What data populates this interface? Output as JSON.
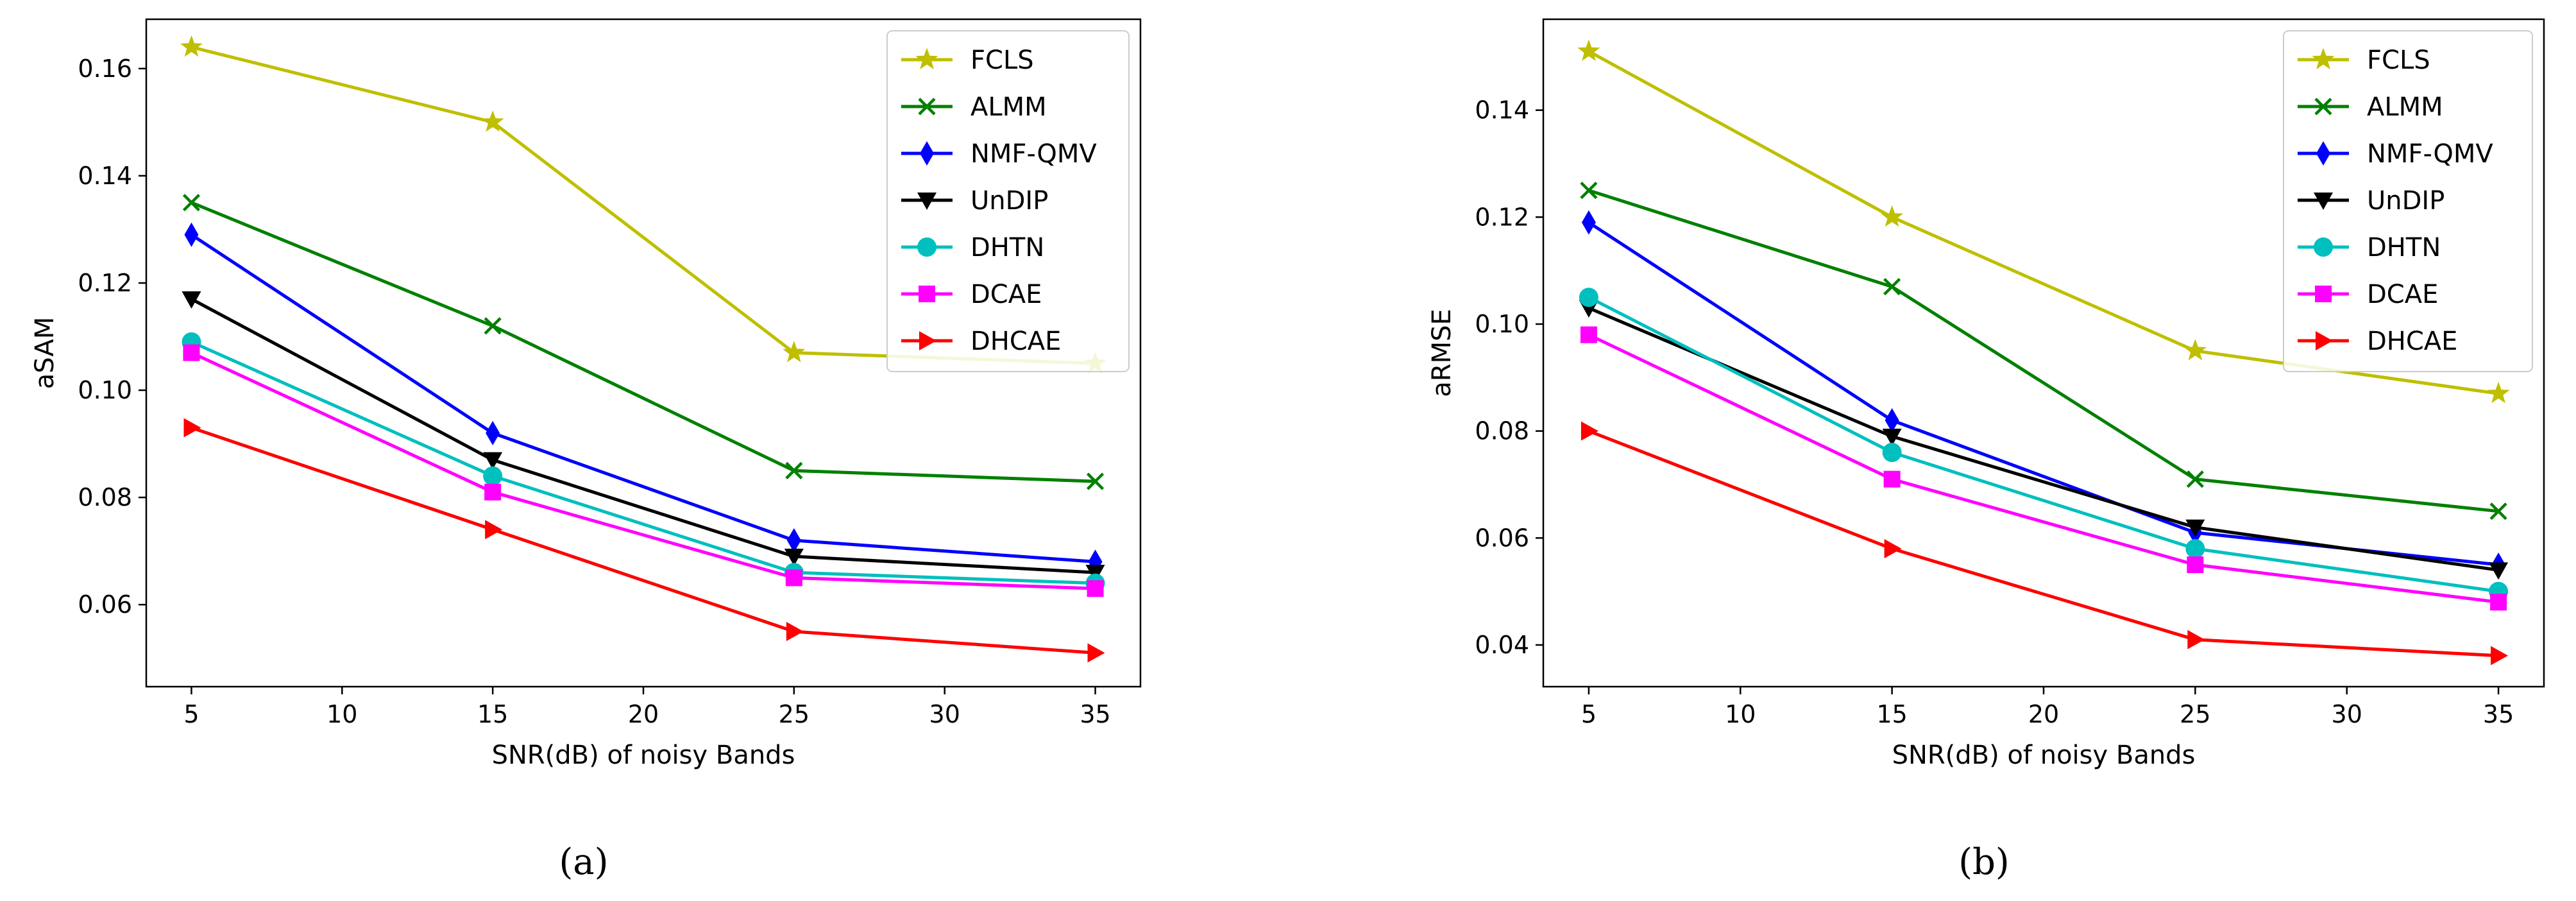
{
  "chart_data": [
    {
      "type": "line",
      "panel_label": "(a)",
      "title": "",
      "xlabel": "SNR(dB) of noisy Bands",
      "ylabel": "aSAM",
      "x": [
        5,
        15,
        25,
        35
      ],
      "xlim": [
        3.5,
        36.5
      ],
      "ylim": [
        0.0447,
        0.1692
      ],
      "xticks": [
        "5",
        "10",
        "15",
        "20",
        "25",
        "30",
        "35"
      ],
      "yticks": [
        "0.06",
        "0.08",
        "0.10",
        "0.12",
        "0.14",
        "0.16"
      ],
      "grid": false,
      "legend_position": "top-right",
      "series": [
        {
          "name": "FCLS",
          "color": "#bfbf00",
          "marker": "star",
          "values": [
            0.164,
            0.15,
            0.107,
            0.105
          ]
        },
        {
          "name": "ALMM",
          "color": "#008000",
          "marker": "x",
          "values": [
            0.135,
            0.112,
            0.085,
            0.083
          ]
        },
        {
          "name": "NMF-QMV",
          "color": "#0000ff",
          "marker": "thin-diamond",
          "values": [
            0.129,
            0.092,
            0.072,
            0.068
          ]
        },
        {
          "name": "UnDIP",
          "color": "#000000",
          "marker": "triangle-down",
          "values": [
            0.117,
            0.087,
            0.069,
            0.066
          ]
        },
        {
          "name": "DHTN",
          "color": "#00bfbf",
          "marker": "circle",
          "values": [
            0.109,
            0.084,
            0.066,
            0.064
          ]
        },
        {
          "name": "DCAE",
          "color": "#ff00ff",
          "marker": "square",
          "values": [
            0.107,
            0.081,
            0.065,
            0.063
          ]
        },
        {
          "name": "DHCAE",
          "color": "#ff0000",
          "marker": "triangle-right",
          "values": [
            0.093,
            0.074,
            0.055,
            0.051
          ]
        }
      ]
    },
    {
      "type": "line",
      "panel_label": "(b)",
      "title": "",
      "xlabel": "SNR(dB) of noisy Bands",
      "ylabel": "aRMSE",
      "x": [
        5,
        15,
        25,
        35
      ],
      "xlim": [
        3.5,
        36.5
      ],
      "ylim": [
        0.0322,
        0.157
      ],
      "xticks": [
        "5",
        "10",
        "15",
        "20",
        "25",
        "30",
        "35"
      ],
      "yticks": [
        "0.04",
        "0.06",
        "0.08",
        "0.10",
        "0.12",
        "0.14"
      ],
      "grid": false,
      "legend_position": "top-right",
      "series": [
        {
          "name": "FCLS",
          "color": "#bfbf00",
          "marker": "star",
          "values": [
            0.151,
            0.12,
            0.095,
            0.087
          ]
        },
        {
          "name": "ALMM",
          "color": "#008000",
          "marker": "x",
          "values": [
            0.125,
            0.107,
            0.071,
            0.065
          ]
        },
        {
          "name": "NMF-QMV",
          "color": "#0000ff",
          "marker": "thin-diamond",
          "values": [
            0.119,
            0.082,
            0.061,
            0.055
          ]
        },
        {
          "name": "UnDIP",
          "color": "#000000",
          "marker": "triangle-down",
          "values": [
            0.103,
            0.079,
            0.062,
            0.054
          ]
        },
        {
          "name": "DHTN",
          "color": "#00bfbf",
          "marker": "circle",
          "values": [
            0.105,
            0.076,
            0.058,
            0.05
          ]
        },
        {
          "name": "DCAE",
          "color": "#ff00ff",
          "marker": "square",
          "values": [
            0.098,
            0.071,
            0.055,
            0.048
          ]
        },
        {
          "name": "DHCAE",
          "color": "#ff0000",
          "marker": "triangle-right",
          "values": [
            0.08,
            0.058,
            0.041,
            0.038
          ]
        }
      ]
    }
  ]
}
